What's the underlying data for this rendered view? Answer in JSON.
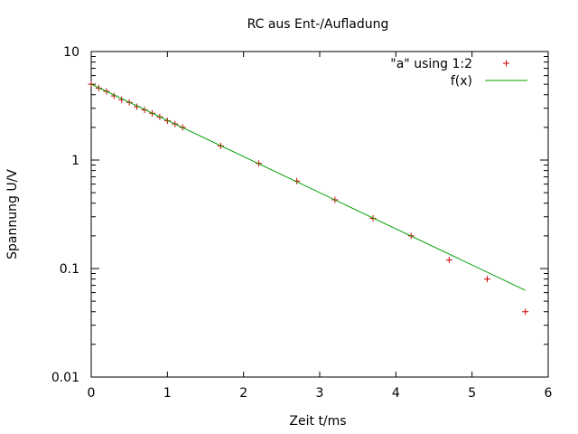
{
  "chart_data": {
    "type": "scatter",
    "title": "RC aus Ent-/Aufladung",
    "xlabel": "Zeit t/ms",
    "ylabel": "Spannung U/V",
    "xlim": [
      0,
      6
    ],
    "ylim": [
      0.01,
      10
    ],
    "yscale": "log",
    "grid": false,
    "legend_position": "top-right",
    "x_ticks": [
      0,
      1,
      2,
      3,
      4,
      5,
      6
    ],
    "x_tick_labels": [
      "0",
      "1",
      "2",
      "3",
      "4",
      "5",
      "6"
    ],
    "y_ticks": [
      0.01,
      0.1,
      1,
      10
    ],
    "y_tick_labels": [
      "0.01",
      "0.1",
      "1",
      "10"
    ],
    "series": [
      {
        "name": "\"a\" using 1:2",
        "kind": "points",
        "marker": "plus",
        "color": "#cc0000",
        "x": [
          0.0,
          0.1,
          0.2,
          0.3,
          0.4,
          0.5,
          0.6,
          0.7,
          0.8,
          0.9,
          1.0,
          1.1,
          1.2,
          1.7,
          2.2,
          2.7,
          3.2,
          3.7,
          4.2,
          4.7,
          5.2,
          5.7
        ],
        "y": [
          5.0,
          4.6,
          4.3,
          3.9,
          3.6,
          3.4,
          3.1,
          2.9,
          2.7,
          2.5,
          2.3,
          2.15,
          2.0,
          1.35,
          0.93,
          0.64,
          0.43,
          0.29,
          0.2,
          0.12,
          0.08,
          0.04
        ]
      },
      {
        "name": "f(x)",
        "kind": "line",
        "color": "#00a000",
        "x": [
          0.0,
          5.7
        ],
        "y": [
          5.0,
          0.063
        ]
      }
    ]
  }
}
